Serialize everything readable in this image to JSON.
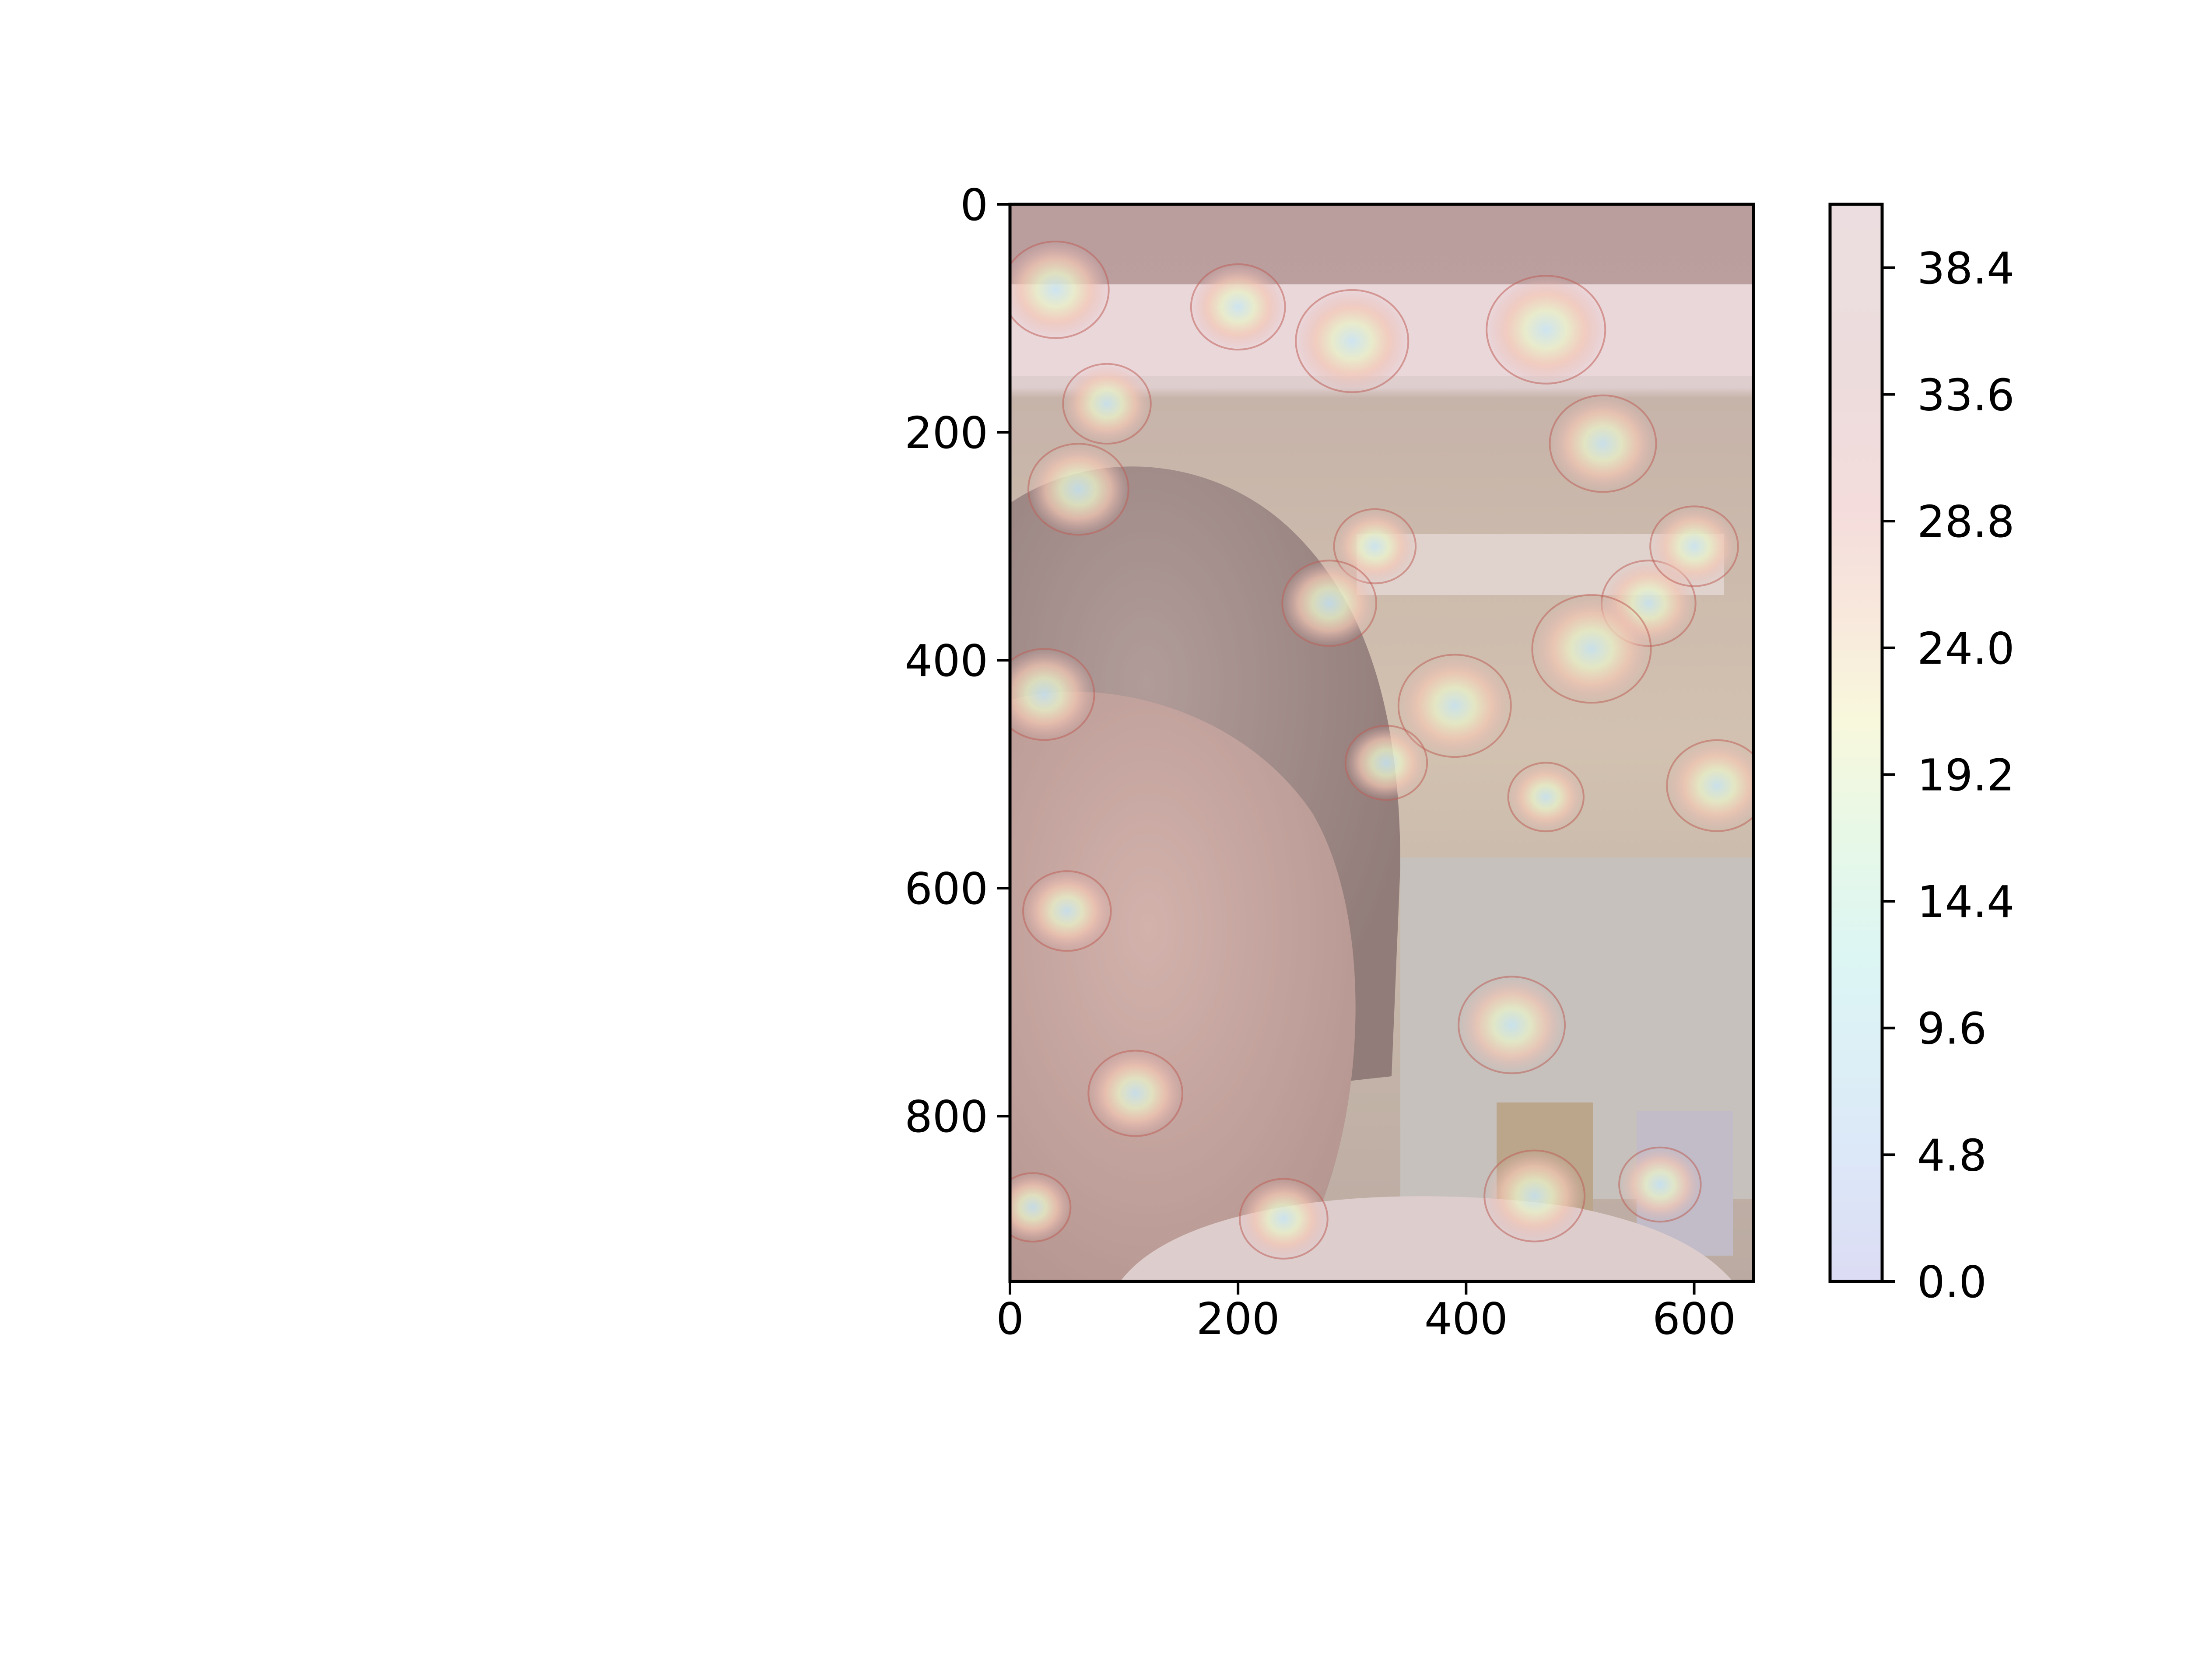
{
  "chart_data": {
    "type": "heatmap",
    "title": "",
    "xlabel": "",
    "ylabel": "",
    "x_range": [
      0,
      652
    ],
    "y_range": [
      945,
      0
    ],
    "x_ticks": [
      0,
      200,
      400,
      600
    ],
    "y_ticks": [
      0,
      200,
      400,
      600,
      800
    ],
    "grid": false,
    "background_image": "photo of a person's face and forehead in a room, overlaid with a semi-transparent contour map",
    "colorbar": {
      "min": 0.0,
      "max": 40.8,
      "ticks": [
        0.0,
        4.8,
        9.6,
        14.4,
        19.2,
        24.0,
        28.8,
        33.6,
        38.4
      ],
      "tick_labels": [
        "0.0",
        "4.8",
        "9.6",
        "14.4",
        "19.2",
        "24.0",
        "28.8",
        "33.6",
        "38.4"
      ],
      "colors": [
        "#dcdcf4",
        "#dce8f8",
        "#dcf6f4",
        "#e8f8e6",
        "#f8f8dc",
        "#f8e8dc",
        "#f4dcdc",
        "#ecdcdc",
        "#ecdee0"
      ]
    },
    "hotspots": [
      {
        "x": 40,
        "y": 75,
        "value": 22
      },
      {
        "x": 85,
        "y": 175,
        "value": 16
      },
      {
        "x": 60,
        "y": 250,
        "value": 20
      },
      {
        "x": 200,
        "y": 90,
        "value": 18
      },
      {
        "x": 300,
        "y": 120,
        "value": 24
      },
      {
        "x": 320,
        "y": 300,
        "value": 14
      },
      {
        "x": 470,
        "y": 110,
        "value": 26
      },
      {
        "x": 520,
        "y": 210,
        "value": 22
      },
      {
        "x": 560,
        "y": 350,
        "value": 18
      },
      {
        "x": 600,
        "y": 300,
        "value": 16
      },
      {
        "x": 470,
        "y": 520,
        "value": 12
      },
      {
        "x": 620,
        "y": 510,
        "value": 20
      },
      {
        "x": 390,
        "y": 440,
        "value": 24
      },
      {
        "x": 330,
        "y": 490,
        "value": 14
      },
      {
        "x": 30,
        "y": 430,
        "value": 20
      },
      {
        "x": 50,
        "y": 620,
        "value": 16
      },
      {
        "x": 110,
        "y": 780,
        "value": 18
      },
      {
        "x": 20,
        "y": 880,
        "value": 12
      },
      {
        "x": 240,
        "y": 890,
        "value": 16
      },
      {
        "x": 460,
        "y": 870,
        "value": 20
      },
      {
        "x": 570,
        "y": 860,
        "value": 14
      },
      {
        "x": 440,
        "y": 720,
        "value": 22
      },
      {
        "x": 510,
        "y": 390,
        "value": 26
      },
      {
        "x": 280,
        "y": 350,
        "value": 18
      }
    ]
  }
}
